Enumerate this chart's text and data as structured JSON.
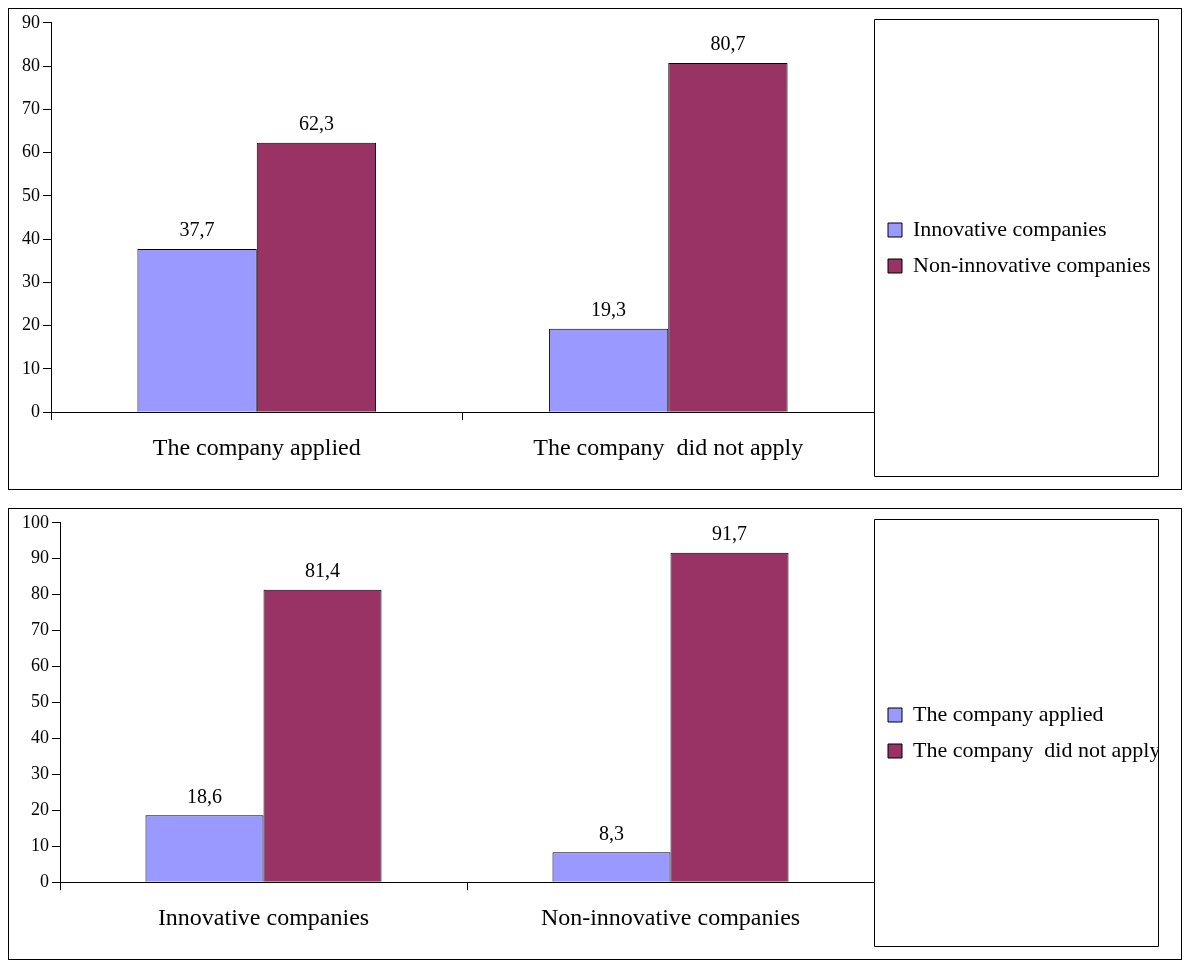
{
  "chart_data": [
    {
      "type": "bar",
      "categories": [
        "The company applied",
        "The company  did not apply"
      ],
      "ylim": [
        0,
        90
      ],
      "yticks": [
        0,
        10,
        20,
        30,
        40,
        50,
        60,
        70,
        80,
        90
      ],
      "grid": false,
      "legend": "right",
      "series": [
        {
          "name": "Innovative companies",
          "color": "#9999ff",
          "values": [
            37.7,
            19.3
          ],
          "value_labels": [
            "37,7",
            "19,3"
          ]
        },
        {
          "name": "Non-innovative companies",
          "color": "#993366",
          "values": [
            62.3,
            80.7
          ],
          "value_labels": [
            "62,3",
            "80,7"
          ]
        }
      ]
    },
    {
      "type": "bar",
      "categories": [
        "Innovative companies",
        "Non-innovative companies"
      ],
      "ylim": [
        0,
        100
      ],
      "yticks": [
        0,
        10,
        20,
        30,
        40,
        50,
        60,
        70,
        80,
        90,
        100
      ],
      "grid": false,
      "legend": "right",
      "series": [
        {
          "name": "The company applied",
          "color": "#9999ff",
          "values": [
            18.6,
            8.3
          ],
          "value_labels": [
            "18,6",
            "8,3"
          ]
        },
        {
          "name": "The company  did not apply",
          "color": "#993366",
          "values": [
            81.4,
            91.7
          ],
          "value_labels": [
            "81,4",
            "91,7"
          ]
        }
      ]
    }
  ]
}
